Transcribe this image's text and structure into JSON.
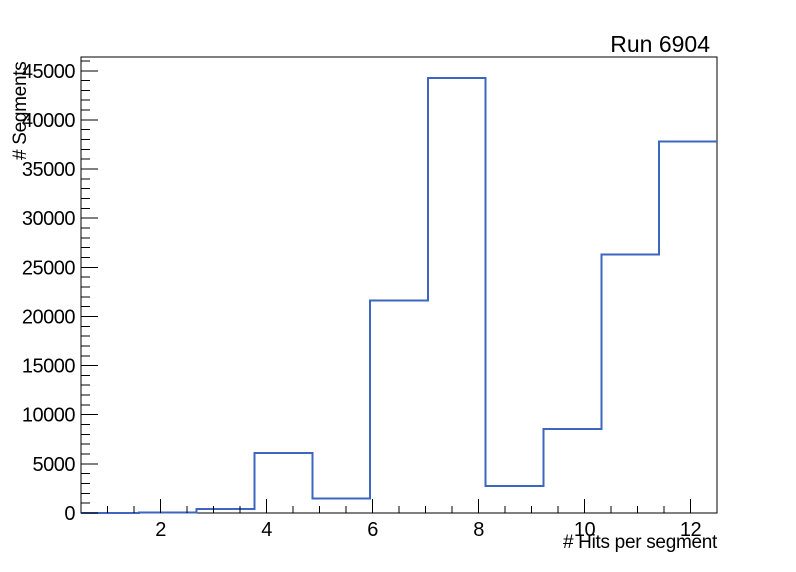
{
  "window": {
    "background": "#ffffff"
  },
  "chart_data": {
    "type": "bar",
    "subtype": "step-outline-histogram",
    "title": "Run 6904",
    "xlabel": "# Hits per segment",
    "ylabel": "# Segments",
    "xlim": [
      0.5,
      12.5
    ],
    "ylim": [
      0,
      46400
    ],
    "grid": false,
    "legend": false,
    "bin_edges": [
      0.5,
      1.591,
      2.682,
      3.773,
      4.864,
      5.955,
      7.045,
      8.136,
      9.227,
      10.318,
      11.409,
      12.5
    ],
    "counts": [
      20,
      70,
      400,
      6100,
      1500,
      21600,
      44250,
      2750,
      8550,
      26300,
      37800
    ],
    "x_major_ticks": [
      2,
      4,
      6,
      8,
      10,
      12
    ],
    "x_tick_labels": [
      "2",
      "4",
      "6",
      "8",
      "10",
      "12"
    ],
    "x_minor_tick_step": 0.5,
    "y_major_ticks": [
      0,
      5000,
      10000,
      15000,
      20000,
      25000,
      30000,
      35000,
      40000,
      45000
    ],
    "y_tick_labels": [
      "0",
      "5000",
      "10000",
      "15000",
      "20000",
      "25000",
      "30000",
      "35000",
      "40000",
      "45000"
    ],
    "y_minor_tick_step": 1000,
    "y_minor_tick_max": 46000,
    "colors": {
      "line": "#3c66c0",
      "axis": "#000000",
      "text": "#000000",
      "background": "#ffffff"
    }
  }
}
